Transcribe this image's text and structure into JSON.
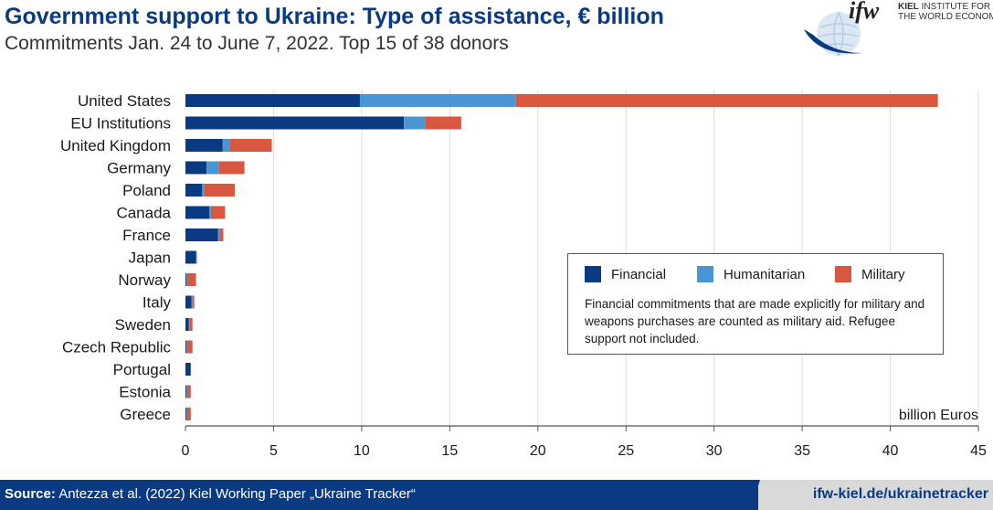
{
  "header": {
    "title": "Government support to Ukraine: Type of assistance, € billion",
    "subtitle": "Commitments Jan. 24 to June 7, 2022. Top 15 of 38 donors"
  },
  "logo": {
    "mark": "ifw",
    "org_line1": "INSTITUTE FOR",
    "org_kiel": "KIEL",
    "org_line2": "THE WORLD ECONOMY"
  },
  "legend": {
    "items": [
      {
        "label": "Financial",
        "color": "#0a3a82"
      },
      {
        "label": "Humanitarian",
        "color": "#4a96d4"
      },
      {
        "label": "Military",
        "color": "#d9573f"
      }
    ],
    "note": "Financial commitments that are made explicitly for military and weapons purchases are counted as military aid. Refugee support not included."
  },
  "footer": {
    "source_label": "Source:",
    "source_text": "Antezza et al. (2022) Kiel Working Paper „Ukraine Tracker“",
    "url": "ifw-kiel.de/ukrainetracker"
  },
  "chart_data": {
    "type": "bar",
    "orientation": "horizontal",
    "stacked": true,
    "title": "Government support to Ukraine: Type of assistance, € billion",
    "xlabel": "billion Euros",
    "ylabel": "",
    "xlim": [
      0,
      45
    ],
    "xticks": [
      0,
      5,
      10,
      15,
      20,
      25,
      30,
      35,
      40,
      45
    ],
    "grid": "vertical",
    "legend_position": "right-center",
    "categories": [
      "United States",
      "EU Institutions",
      "United Kingdom",
      "Germany",
      "Poland",
      "Canada",
      "France",
      "Japan",
      "Norway",
      "Italy",
      "Sweden",
      "Czech Republic",
      "Portugal",
      "Estonia",
      "Greece"
    ],
    "series": [
      {
        "name": "Financial",
        "color": "#0a3a82",
        "values": [
          9.9,
          12.4,
          2.1,
          1.2,
          0.95,
          1.35,
          1.85,
          0.6,
          0.05,
          0.35,
          0.2,
          0.05,
          0.3,
          0.05,
          0.05
        ]
      },
      {
        "name": "Humanitarian",
        "color": "#4a96d4",
        "values": [
          8.85,
          1.2,
          0.4,
          0.7,
          0.1,
          0.1,
          0.1,
          0.05,
          0.05,
          0.05,
          0.05,
          0.05,
          0.0,
          0.05,
          0.05
        ]
      },
      {
        "name": "Military",
        "color": "#d9573f",
        "values": [
          23.95,
          2.05,
          2.4,
          1.45,
          1.75,
          0.8,
          0.2,
          0.0,
          0.5,
          0.1,
          0.15,
          0.3,
          0.0,
          0.2,
          0.2
        ]
      }
    ]
  }
}
